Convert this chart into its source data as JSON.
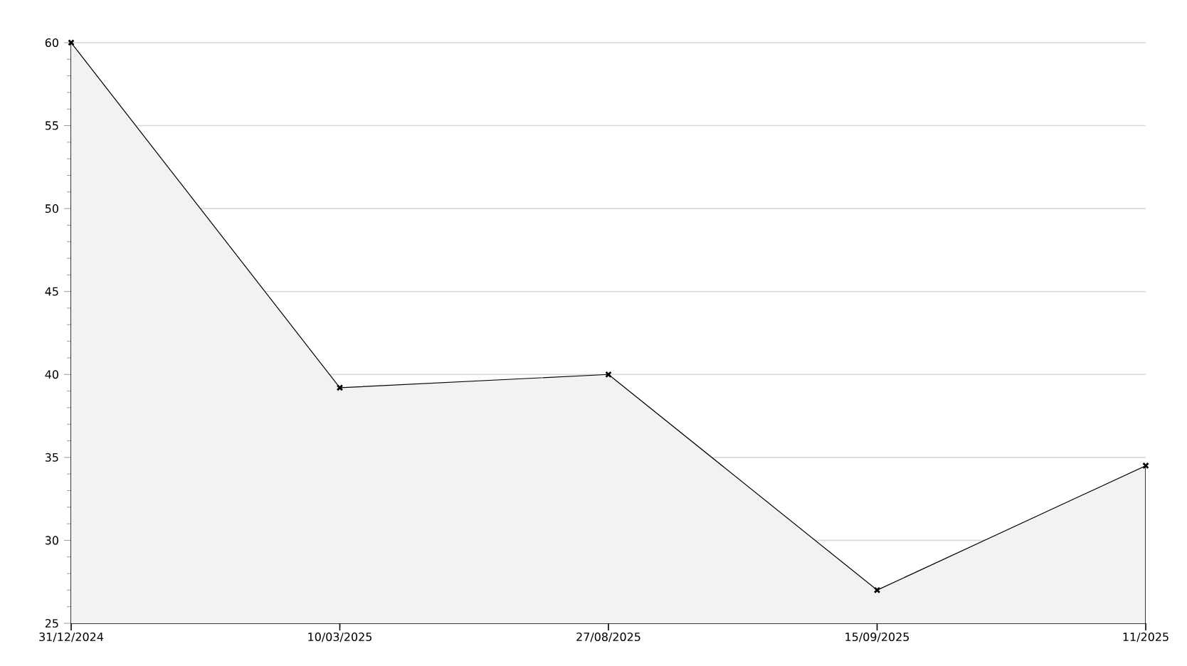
{
  "chart_data": {
    "type": "area",
    "categories": [
      "31/12/2024",
      "10/03/2025",
      "27/08/2025",
      "15/09/2025",
      "11/2025"
    ],
    "series": [
      {
        "color": "#000000",
        "values": [
          60,
          39.2,
          40,
          27,
          34.5
        ]
      }
    ],
    "ylim": [
      25,
      60
    ],
    "yticks": [
      25,
      30,
      35,
      40,
      45,
      50,
      55,
      60
    ],
    "grid": "y",
    "marker": "cross",
    "line_style": "solid"
  }
}
